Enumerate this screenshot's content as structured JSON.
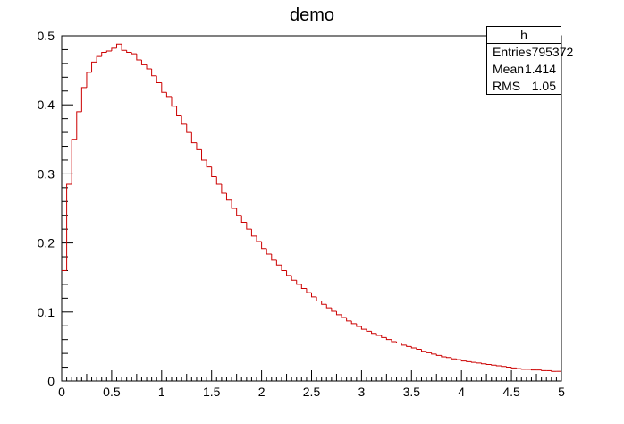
{
  "chart_data": {
    "type": "bar",
    "title": "demo",
    "xlabel": "",
    "ylabel": "",
    "xlim": [
      0,
      5
    ],
    "ylim": [
      0,
      0.5
    ],
    "xticks": [
      "0",
      "0.5",
      "1",
      "1.5",
      "2",
      "2.5",
      "3",
      "3.5",
      "4",
      "4.5",
      "5"
    ],
    "yticks": [
      "0",
      "0.1",
      "0.2",
      "0.3",
      "0.4",
      "0.5"
    ],
    "bin_width": 0.05,
    "line_color": "#cc0000",
    "values": [
      0.16,
      0.285,
      0.35,
      0.39,
      0.425,
      0.447,
      0.462,
      0.47,
      0.476,
      0.478,
      0.482,
      0.488,
      0.479,
      0.476,
      0.474,
      0.465,
      0.458,
      0.452,
      0.442,
      0.432,
      0.418,
      0.412,
      0.398,
      0.384,
      0.372,
      0.36,
      0.345,
      0.335,
      0.32,
      0.31,
      0.296,
      0.285,
      0.272,
      0.262,
      0.25,
      0.24,
      0.23,
      0.22,
      0.21,
      0.202,
      0.192,
      0.184,
      0.175,
      0.168,
      0.16,
      0.153,
      0.146,
      0.14,
      0.134,
      0.128,
      0.122,
      0.116,
      0.111,
      0.106,
      0.101,
      0.096,
      0.092,
      0.087,
      0.083,
      0.079,
      0.075,
      0.072,
      0.069,
      0.066,
      0.063,
      0.06,
      0.057,
      0.055,
      0.052,
      0.05,
      0.048,
      0.046,
      0.043,
      0.041,
      0.039,
      0.037,
      0.035,
      0.034,
      0.032,
      0.031,
      0.029,
      0.028,
      0.027,
      0.026,
      0.025,
      0.024,
      0.023,
      0.022,
      0.021,
      0.02,
      0.019,
      0.018,
      0.017,
      0.017,
      0.016,
      0.016,
      0.015,
      0.015,
      0.014,
      0.014
    ]
  },
  "stats": {
    "name": "h",
    "entries_label": "Entries",
    "entries": "795372",
    "mean_label": "Mean",
    "mean": "1.414",
    "rms_label": "RMS",
    "rms": "1.05"
  }
}
